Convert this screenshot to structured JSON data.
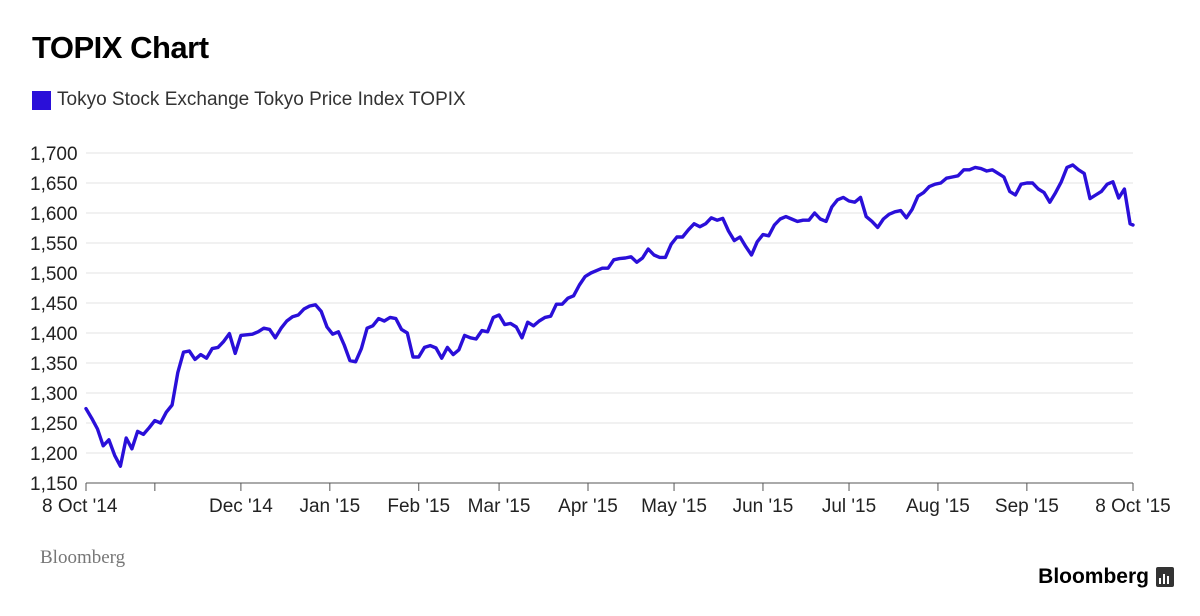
{
  "title": "TOPIX Chart",
  "legend_label": "Tokyo Stock Exchange Tokyo Price Index TOPIX",
  "source": "Bloomberg",
  "logo_text": "Bloomberg",
  "colors": {
    "series": "#2a0fd9",
    "grid": "#e3e3e3",
    "axis": "#555555",
    "text": "#222222"
  },
  "chart_data": {
    "type": "line",
    "title": "TOPIX Chart",
    "xlabel": "",
    "ylabel": "",
    "ylim": [
      1150,
      1700
    ],
    "yticks": [
      1150,
      1200,
      1250,
      1300,
      1350,
      1400,
      1450,
      1500,
      1550,
      1600,
      1650,
      1700
    ],
    "ytick_labels": [
      "1,150",
      "1,200",
      "1,250",
      "1,300",
      "1,350",
      "1,400",
      "1,450",
      "1,500",
      "1,550",
      "1,600",
      "1,650",
      "1,700"
    ],
    "xticks": [
      {
        "date": "2014-10-08",
        "label": "8 Oct '14"
      },
      {
        "date": "2014-11-01",
        "label": ""
      },
      {
        "date": "2014-12-01",
        "label": "Dec '14"
      },
      {
        "date": "2015-01-01",
        "label": "Jan '15"
      },
      {
        "date": "2015-02-01",
        "label": "Feb '15"
      },
      {
        "date": "2015-03-01",
        "label": "Mar '15"
      },
      {
        "date": "2015-04-01",
        "label": "Apr '15"
      },
      {
        "date": "2015-05-01",
        "label": "May '15"
      },
      {
        "date": "2015-06-01",
        "label": "Jun '15"
      },
      {
        "date": "2015-07-01",
        "label": "Jul '15"
      },
      {
        "date": "2015-08-01",
        "label": "Aug '15"
      },
      {
        "date": "2015-09-01",
        "label": "Sep '15"
      },
      {
        "date": "2015-10-08",
        "label": "8 Oct '15"
      }
    ],
    "grid": true,
    "legend_position": "top-left",
    "series": [
      {
        "name": "Tokyo Stock Exchange Tokyo Price Index TOPIX",
        "points": [
          [
            "2014-10-08",
            1274
          ],
          [
            "2014-10-10",
            1258
          ],
          [
            "2014-10-12",
            1240
          ],
          [
            "2014-10-14",
            1212
          ],
          [
            "2014-10-16",
            1222
          ],
          [
            "2014-10-18",
            1196
          ],
          [
            "2014-10-20",
            1178
          ],
          [
            "2014-10-22",
            1225
          ],
          [
            "2014-10-24",
            1207
          ],
          [
            "2014-10-26",
            1236
          ],
          [
            "2014-10-28",
            1231
          ],
          [
            "2014-10-30",
            1242
          ],
          [
            "2014-11-01",
            1254
          ],
          [
            "2014-11-03",
            1250
          ],
          [
            "2014-11-05",
            1268
          ],
          [
            "2014-11-07",
            1280
          ],
          [
            "2014-11-09",
            1334
          ],
          [
            "2014-11-11",
            1368
          ],
          [
            "2014-11-13",
            1370
          ],
          [
            "2014-11-15",
            1356
          ],
          [
            "2014-11-17",
            1364
          ],
          [
            "2014-11-19",
            1358
          ],
          [
            "2014-11-21",
            1374
          ],
          [
            "2014-11-23",
            1376
          ],
          [
            "2014-11-25",
            1386
          ],
          [
            "2014-11-27",
            1399
          ],
          [
            "2014-11-29",
            1366
          ],
          [
            "2014-12-01",
            1396
          ],
          [
            "2014-12-03",
            1397
          ],
          [
            "2014-12-05",
            1398
          ],
          [
            "2014-12-07",
            1402
          ],
          [
            "2014-12-09",
            1408
          ],
          [
            "2014-12-11",
            1406
          ],
          [
            "2014-12-13",
            1392
          ],
          [
            "2014-12-15",
            1408
          ],
          [
            "2014-12-17",
            1420
          ],
          [
            "2014-12-19",
            1427
          ],
          [
            "2014-12-21",
            1430
          ],
          [
            "2014-12-23",
            1440
          ],
          [
            "2014-12-25",
            1445
          ],
          [
            "2014-12-27",
            1447
          ],
          [
            "2014-12-29",
            1436
          ],
          [
            "2014-12-31",
            1410
          ],
          [
            "2015-01-02",
            1398
          ],
          [
            "2015-01-04",
            1402
          ],
          [
            "2015-01-06",
            1380
          ],
          [
            "2015-01-08",
            1354
          ],
          [
            "2015-01-10",
            1352
          ],
          [
            "2015-01-12",
            1374
          ],
          [
            "2015-01-14",
            1408
          ],
          [
            "2015-01-16",
            1412
          ],
          [
            "2015-01-18",
            1424
          ],
          [
            "2015-01-20",
            1420
          ],
          [
            "2015-01-22",
            1426
          ],
          [
            "2015-01-24",
            1424
          ],
          [
            "2015-01-26",
            1406
          ],
          [
            "2015-01-28",
            1400
          ],
          [
            "2015-01-30",
            1360
          ],
          [
            "2015-02-01",
            1360
          ],
          [
            "2015-02-03",
            1376
          ],
          [
            "2015-02-05",
            1379
          ],
          [
            "2015-02-07",
            1375
          ],
          [
            "2015-02-09",
            1358
          ],
          [
            "2015-02-11",
            1376
          ],
          [
            "2015-02-13",
            1364
          ],
          [
            "2015-02-15",
            1372
          ],
          [
            "2015-02-17",
            1396
          ],
          [
            "2015-02-19",
            1392
          ],
          [
            "2015-02-21",
            1390
          ],
          [
            "2015-02-23",
            1404
          ],
          [
            "2015-02-25",
            1402
          ],
          [
            "2015-02-27",
            1426
          ],
          [
            "2015-03-01",
            1430
          ],
          [
            "2015-03-03",
            1414
          ],
          [
            "2015-03-05",
            1416
          ],
          [
            "2015-03-07",
            1410
          ],
          [
            "2015-03-09",
            1392
          ],
          [
            "2015-03-11",
            1418
          ],
          [
            "2015-03-13",
            1412
          ],
          [
            "2015-03-15",
            1420
          ],
          [
            "2015-03-17",
            1426
          ],
          [
            "2015-03-19",
            1428
          ],
          [
            "2015-03-21",
            1448
          ],
          [
            "2015-03-23",
            1448
          ],
          [
            "2015-03-25",
            1458
          ],
          [
            "2015-03-27",
            1462
          ],
          [
            "2015-03-29",
            1480
          ],
          [
            "2015-03-31",
            1494
          ],
          [
            "2015-04-02",
            1500
          ],
          [
            "2015-04-04",
            1504
          ],
          [
            "2015-04-06",
            1508
          ],
          [
            "2015-04-08",
            1508
          ],
          [
            "2015-04-10",
            1522
          ],
          [
            "2015-04-12",
            1524
          ],
          [
            "2015-04-14",
            1525
          ],
          [
            "2015-04-16",
            1527
          ],
          [
            "2015-04-18",
            1518
          ],
          [
            "2015-04-20",
            1525
          ],
          [
            "2015-04-22",
            1540
          ],
          [
            "2015-04-24",
            1530
          ],
          [
            "2015-04-26",
            1526
          ],
          [
            "2015-04-28",
            1526
          ],
          [
            "2015-04-30",
            1548
          ],
          [
            "2015-05-02",
            1560
          ],
          [
            "2015-05-04",
            1560
          ],
          [
            "2015-05-06",
            1572
          ],
          [
            "2015-05-08",
            1582
          ],
          [
            "2015-05-10",
            1577
          ],
          [
            "2015-05-12",
            1582
          ],
          [
            "2015-05-14",
            1592
          ],
          [
            "2015-05-16",
            1588
          ],
          [
            "2015-05-18",
            1591
          ],
          [
            "2015-05-20",
            1570
          ],
          [
            "2015-05-22",
            1554
          ],
          [
            "2015-05-24",
            1560
          ],
          [
            "2015-05-26",
            1544
          ],
          [
            "2015-05-28",
            1530
          ],
          [
            "2015-05-30",
            1552
          ],
          [
            "2015-06-01",
            1564
          ],
          [
            "2015-06-03",
            1562
          ],
          [
            "2015-06-05",
            1580
          ],
          [
            "2015-06-07",
            1590
          ],
          [
            "2015-06-09",
            1594
          ],
          [
            "2015-06-11",
            1590
          ],
          [
            "2015-06-13",
            1586
          ],
          [
            "2015-06-15",
            1588
          ],
          [
            "2015-06-17",
            1588
          ],
          [
            "2015-06-19",
            1600
          ],
          [
            "2015-06-21",
            1590
          ],
          [
            "2015-06-23",
            1586
          ],
          [
            "2015-06-25",
            1610
          ],
          [
            "2015-06-27",
            1622
          ],
          [
            "2015-06-29",
            1626
          ],
          [
            "2015-07-01",
            1620
          ],
          [
            "2015-07-03",
            1618
          ],
          [
            "2015-07-05",
            1626
          ],
          [
            "2015-07-07",
            1594
          ],
          [
            "2015-07-09",
            1586
          ],
          [
            "2015-07-11",
            1576
          ],
          [
            "2015-07-13",
            1590
          ],
          [
            "2015-07-15",
            1598
          ],
          [
            "2015-07-17",
            1602
          ],
          [
            "2015-07-19",
            1604
          ],
          [
            "2015-07-21",
            1592
          ],
          [
            "2015-07-23",
            1606
          ],
          [
            "2015-07-25",
            1628
          ],
          [
            "2015-07-27",
            1634
          ],
          [
            "2015-07-29",
            1644
          ],
          [
            "2015-07-31",
            1648
          ],
          [
            "2015-08-02",
            1650
          ],
          [
            "2015-08-04",
            1658
          ],
          [
            "2015-08-06",
            1660
          ],
          [
            "2015-08-08",
            1662
          ],
          [
            "2015-08-10",
            1672
          ],
          [
            "2015-08-12",
            1672
          ],
          [
            "2015-08-14",
            1676
          ],
          [
            "2015-08-16",
            1674
          ],
          [
            "2015-08-18",
            1670
          ],
          [
            "2015-08-20",
            1672
          ],
          [
            "2015-08-22",
            1666
          ],
          [
            "2015-08-24",
            1660
          ],
          [
            "2015-08-26",
            1636
          ],
          [
            "2015-08-28",
            1630
          ],
          [
            "2015-08-30",
            1648
          ],
          [
            "2015-09-01",
            1650
          ],
          [
            "2015-09-03",
            1650
          ],
          [
            "2015-09-05",
            1640
          ],
          [
            "2015-09-07",
            1634
          ],
          [
            "2015-09-09",
            1618
          ],
          [
            "2015-09-11",
            1634
          ],
          [
            "2015-09-13",
            1652
          ],
          [
            "2015-09-15",
            1676
          ],
          [
            "2015-09-17",
            1680
          ],
          [
            "2015-09-19",
            1672
          ],
          [
            "2015-09-21",
            1666
          ],
          [
            "2015-09-23",
            1624
          ],
          [
            "2015-09-25",
            1630
          ],
          [
            "2015-09-27",
            1636
          ],
          [
            "2015-09-29",
            1648
          ],
          [
            "2015-10-01",
            1652
          ],
          [
            "2015-10-03",
            1625
          ],
          [
            "2015-10-05",
            1640
          ],
          [
            "2015-10-07",
            1582
          ],
          [
            "2015-10-08",
            1580
          ]
        ]
      }
    ]
  }
}
